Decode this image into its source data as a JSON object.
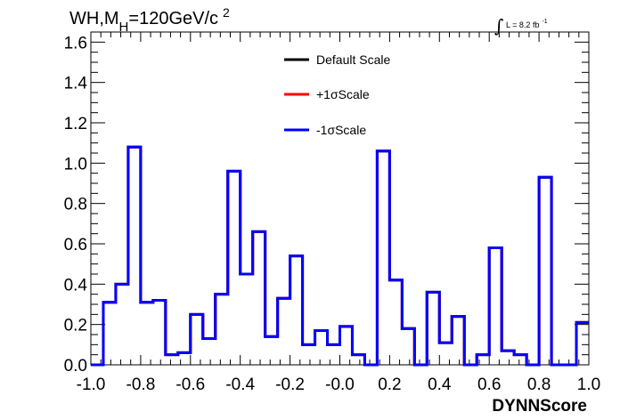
{
  "chart_data": {
    "type": "step-histogram",
    "title_main": "WH,M",
    "title_sub": "H",
    "title_rest": "=120GeV/c",
    "title_sup": "2",
    "luminosity": {
      "integral_symbol": "∫",
      "label": "L = 8.2 fb",
      "exponent": "-1"
    },
    "xlabel": "DYNNScore",
    "xlim": [
      -1.0,
      1.0
    ],
    "ylim": [
      0.0,
      1.65
    ],
    "x_ticks": [
      {
        "value": -1.0,
        "label": "-1.0"
      },
      {
        "value": -0.8,
        "label": "-0.8"
      },
      {
        "value": -0.6,
        "label": "-0.6"
      },
      {
        "value": -0.4,
        "label": "-0.4"
      },
      {
        "value": -0.2,
        "label": "-0.2"
      },
      {
        "value": 0.0,
        "label": "-0.0"
      },
      {
        "value": 0.2,
        "label": "0.2"
      },
      {
        "value": 0.4,
        "label": "0.4"
      },
      {
        "value": 0.6,
        "label": "0.6"
      },
      {
        "value": 0.8,
        "label": "0.8"
      },
      {
        "value": 1.0,
        "label": "1.0"
      }
    ],
    "y_ticks": [
      {
        "value": 0.0,
        "label": "0.0"
      },
      {
        "value": 0.2,
        "label": "0.2"
      },
      {
        "value": 0.4,
        "label": "0.4"
      },
      {
        "value": 0.6,
        "label": "0.6"
      },
      {
        "value": 0.8,
        "label": "0.8"
      },
      {
        "value": 1.0,
        "label": "1.0"
      },
      {
        "value": 1.2,
        "label": "1.2"
      },
      {
        "value": 1.4,
        "label": "1.4"
      },
      {
        "value": 1.6,
        "label": "1.6"
      }
    ],
    "bin_edges": [
      -1.0,
      -0.95,
      -0.9,
      -0.85,
      -0.8,
      -0.75,
      -0.7,
      -0.65,
      -0.6,
      -0.55,
      -0.5,
      -0.45,
      -0.4,
      -0.35,
      -0.3,
      -0.25,
      -0.2,
      -0.15,
      -0.1,
      -0.05,
      0.0,
      0.05,
      0.1,
      0.15,
      0.2,
      0.25,
      0.3,
      0.35,
      0.4,
      0.45,
      0.5,
      0.55,
      0.6,
      0.65,
      0.7,
      0.75,
      0.8,
      0.85,
      0.9,
      0.95,
      1.0
    ],
    "series": [
      {
        "name": "Default Scale",
        "color": "#000000",
        "values": [
          0.0,
          0.31,
          0.4,
          1.08,
          0.31,
          0.32,
          0.05,
          0.06,
          0.25,
          0.13,
          0.35,
          0.96,
          0.45,
          0.66,
          0.14,
          0.33,
          0.54,
          0.1,
          0.17,
          0.1,
          0.19,
          0.05,
          0.0,
          1.06,
          0.42,
          0.18,
          0.0,
          0.36,
          0.11,
          0.24,
          0.0,
          0.05,
          0.58,
          0.07,
          0.05,
          0.0,
          0.93,
          0.0,
          0.0,
          0.21
        ]
      },
      {
        "name": "+1σScale",
        "color": "#ff0000",
        "values": [
          0.0,
          0.31,
          0.4,
          1.08,
          0.31,
          0.32,
          0.05,
          0.06,
          0.25,
          0.13,
          0.35,
          0.96,
          0.45,
          0.66,
          0.14,
          0.33,
          0.54,
          0.1,
          0.17,
          0.1,
          0.19,
          0.05,
          0.0,
          1.06,
          0.42,
          0.18,
          0.0,
          0.36,
          0.11,
          0.24,
          0.0,
          0.05,
          0.58,
          0.07,
          0.05,
          0.0,
          0.93,
          0.0,
          0.0,
          0.21
        ]
      },
      {
        "name": "-1σScale",
        "color": "#0000ff",
        "values": [
          0.0,
          0.31,
          0.4,
          1.08,
          0.31,
          0.32,
          0.05,
          0.06,
          0.25,
          0.13,
          0.35,
          0.96,
          0.45,
          0.66,
          0.14,
          0.33,
          0.54,
          0.1,
          0.17,
          0.1,
          0.19,
          0.05,
          0.0,
          1.06,
          0.42,
          0.18,
          0.0,
          0.36,
          0.11,
          0.24,
          0.0,
          0.05,
          0.58,
          0.07,
          0.05,
          0.0,
          0.93,
          0.0,
          0.0,
          0.21
        ]
      }
    ],
    "legend_position": "top-center",
    "grid": false
  }
}
